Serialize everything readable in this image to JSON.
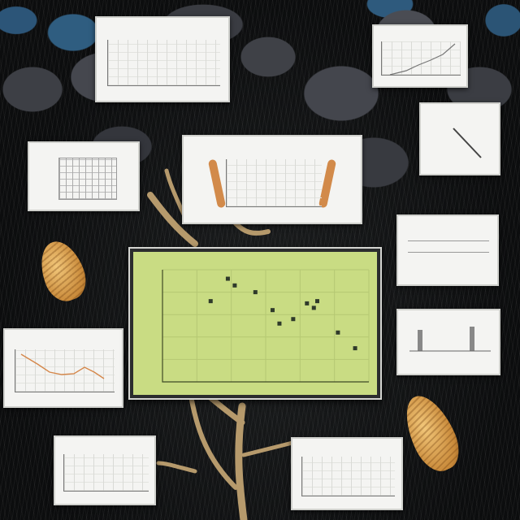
{
  "scene": {
    "description_colors": {
      "ground": "#0e0f10",
      "rock": "#44464d",
      "water": "#2f5d80",
      "branch": "#b69a6c",
      "main_plot_bg": "#c9dc83"
    },
    "icons": [
      "seed-pod-icon",
      "branch-icon"
    ]
  },
  "main_chart": {
    "title": "",
    "xlabel": "",
    "ylabel": "",
    "chart_data": {
      "type": "scatter",
      "title": "",
      "x": [
        1.4,
        1.9,
        2.1,
        2.7,
        3.2,
        3.4,
        3.8,
        4.2,
        4.5,
        5.1,
        5.6,
        4.4
      ],
      "y": [
        3.6,
        4.6,
        4.3,
        4.0,
        3.2,
        2.6,
        2.8,
        3.5,
        3.6,
        2.2,
        1.5,
        3.3
      ],
      "xlim": [
        0,
        6
      ],
      "ylim": [
        0,
        5
      ],
      "grid": true,
      "xlabel": "",
      "ylabel": ""
    }
  },
  "panels": [
    {
      "id": "top-left",
      "title": ""
    },
    {
      "id": "top-right",
      "title": ""
    },
    {
      "id": "left-upper",
      "title": ""
    },
    {
      "id": "center-upper",
      "title": ""
    },
    {
      "id": "right-upper",
      "title": ""
    },
    {
      "id": "right-middle",
      "title": ""
    },
    {
      "id": "right-lower",
      "title": ""
    },
    {
      "id": "left-lower",
      "title": ""
    },
    {
      "id": "bottom-left",
      "title": ""
    },
    {
      "id": "bottom-right",
      "title": ""
    }
  ]
}
